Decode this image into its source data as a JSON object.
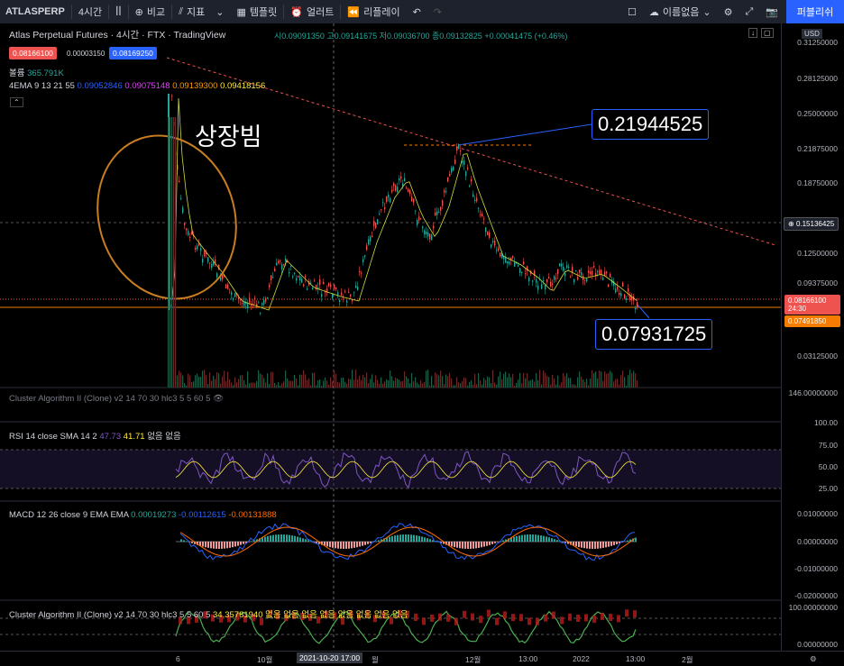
{
  "toolbar": {
    "symbol": "ATLASPERP",
    "interval": "4시간",
    "compare": "비교",
    "indicators": "지표",
    "templates": "템플릿",
    "alert": "얼러트",
    "replay": "리플레이",
    "layout_name": "이름없음",
    "publish": "퍼블리쉬"
  },
  "header": {
    "title": "Atlas Perpetual Futures · 4시간 · FTX · TradingView",
    "ohlc": "시0.09091350 고0.09141675 저0.09036700 종0.09132825 +0.00041475 (+0.46%)",
    "sell_price": "0.08166100",
    "spread": "0.00003150",
    "buy_price": "0.08169250",
    "volume_label": "볼륨",
    "volume_value": "365.791K",
    "ema_label": "4EMA 9 13 21 55",
    "ema_values": [
      "0.09052846",
      "0.09075148",
      "0.09139300",
      "0.09418156"
    ],
    "currency": "USD"
  },
  "annotations": {
    "listing_text": "상장빔",
    "top_price": "0.21944525",
    "bottom_price": "0.07931725"
  },
  "price_scale": {
    "labels": [
      "0.31250000",
      "0.28125000",
      "0.25000000",
      "0.21875000",
      "0.18750000",
      "0.15136425",
      "0.12500000",
      "0.09375000",
      "0.08166100",
      "24:30",
      "0.07491850",
      "0.03125000",
      "146.00000000"
    ],
    "rsi_labels": [
      "100.00",
      "75.00",
      "50.00",
      "25.00"
    ],
    "macd_labels": [
      "0.01000000",
      "0.00000000",
      "-0.01000000",
      "-0.02000000"
    ],
    "cluster_labels": [
      "100.00000000",
      "0.00000000"
    ]
  },
  "panes": {
    "cluster1": "Cluster Algorithm II (Clone) v2 14 70 30 hlc3 5 5 60 5",
    "rsi_label": "RSI 14 close SMA 14 2",
    "rsi_v1": "47.73",
    "rsi_v2": "41.71",
    "rsi_rest": "없음 없음",
    "macd_label": "MACD 12 26 close 9 EMA EMA",
    "macd_v1": "0.00019273",
    "macd_v2": "-0.00112615",
    "macd_v3": "-0.00131888",
    "cluster2": "Cluster Algorithm II (Clone) v2 14 70 30 hlc3 5 5 60 5",
    "cluster2_value": "34.35781940 없음 없음 없음 없음 없음 없음 없음 없음"
  },
  "time_axis": {
    "labels": [
      "6",
      "10월",
      "2021-10-20 17:00",
      "월",
      "12월",
      "13:00",
      "2022",
      "13:00",
      "2월"
    ]
  },
  "colors": {
    "bg": "#000000",
    "up": "#26a69a",
    "down": "#ef5350",
    "accent": "#2962ff",
    "orange": "#f57c00"
  }
}
